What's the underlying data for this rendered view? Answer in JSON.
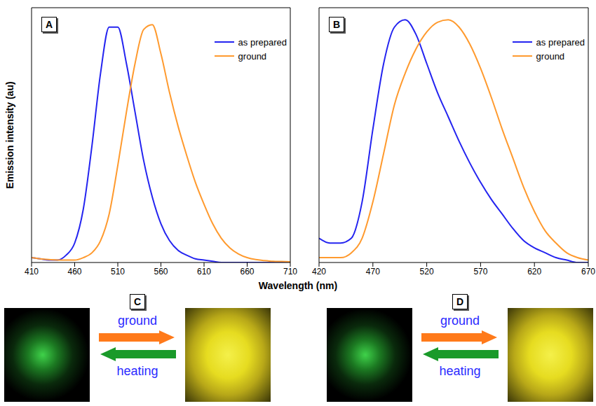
{
  "chart_data": [
    {
      "type": "line",
      "label": "A",
      "ylabel": "Emission intensity (au)",
      "x": [
        410,
        420,
        430,
        440,
        450,
        460,
        470,
        480,
        490,
        500,
        510,
        520,
        530,
        540,
        550,
        560,
        570,
        580,
        590,
        600,
        610,
        620,
        630,
        640,
        650,
        660,
        670,
        680,
        690,
        700,
        710
      ],
      "xlim": [
        410,
        710
      ],
      "xticks": [
        410,
        460,
        510,
        560,
        610,
        660,
        710
      ],
      "ylim": [
        0,
        1.05
      ],
      "tick_labels": "x",
      "legend": "upper right",
      "series": [
        {
          "name": "as prepared",
          "color": "#2424f0",
          "values": [
            0.02,
            0.015,
            0.01,
            0.01,
            0.03,
            0.08,
            0.22,
            0.48,
            0.78,
            0.97,
            0.97,
            0.82,
            0.62,
            0.42,
            0.27,
            0.16,
            0.09,
            0.05,
            0.03,
            0.015,
            0.01,
            0.005,
            0,
            0,
            0,
            0,
            0,
            0,
            0,
            0,
            0
          ]
        },
        {
          "name": "ground",
          "color": "#ff9a2e",
          "values": [
            0.02,
            0.015,
            0.012,
            0.01,
            0.01,
            0.01,
            0.02,
            0.04,
            0.09,
            0.2,
            0.4,
            0.62,
            0.82,
            0.96,
            0.98,
            0.86,
            0.7,
            0.56,
            0.44,
            0.33,
            0.24,
            0.16,
            0.1,
            0.06,
            0.035,
            0.02,
            0.012,
            0.008,
            0.005,
            0.004,
            0.003
          ]
        }
      ]
    },
    {
      "type": "line",
      "label": "B",
      "x": [
        420,
        430,
        440,
        450,
        460,
        470,
        480,
        490,
        500,
        510,
        520,
        530,
        540,
        550,
        560,
        570,
        580,
        590,
        600,
        610,
        620,
        630,
        640,
        650,
        660,
        670
      ],
      "xlim": [
        420,
        670
      ],
      "xticks": [
        420,
        470,
        520,
        570,
        620,
        670
      ],
      "ylim": [
        0,
        1.05
      ],
      "tick_labels": "x",
      "legend": "upper right",
      "series": [
        {
          "name": "as prepared",
          "color": "#2424f0",
          "values": [
            0.1,
            0.08,
            0.08,
            0.1,
            0.25,
            0.55,
            0.82,
            0.97,
            1.0,
            0.94,
            0.82,
            0.7,
            0.6,
            0.5,
            0.41,
            0.33,
            0.26,
            0.2,
            0.14,
            0.09,
            0.06,
            0.04,
            0.02,
            0.01,
            0.0,
            0.0
          ]
        },
        {
          "name": "ground",
          "color": "#ff9a2e",
          "values": [
            0.02,
            0.02,
            0.02,
            0.04,
            0.1,
            0.25,
            0.45,
            0.65,
            0.78,
            0.88,
            0.95,
            0.99,
            1.0,
            0.97,
            0.9,
            0.8,
            0.68,
            0.55,
            0.43,
            0.31,
            0.21,
            0.13,
            0.08,
            0.04,
            0.02,
            0.01
          ]
        }
      ]
    }
  ],
  "xlabel": "Wavelength (nm)",
  "photos": [
    {
      "label": "C",
      "forward": "ground",
      "reverse": "heating"
    },
    {
      "label": "D",
      "forward": "ground",
      "reverse": "heating"
    }
  ]
}
